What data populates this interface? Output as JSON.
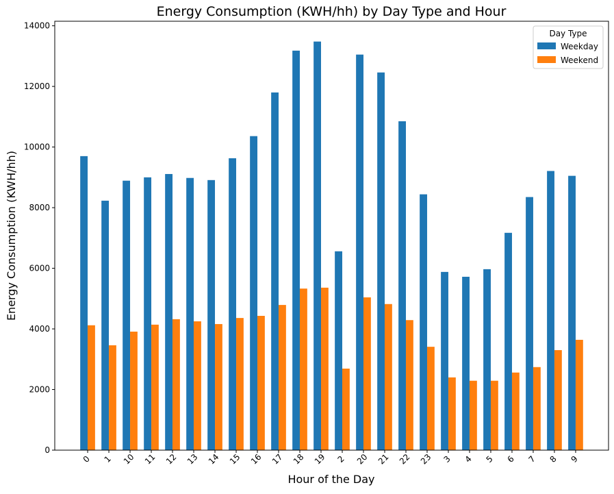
{
  "chart_data": {
    "type": "bar",
    "title": "Energy Consumption (KWH/hh) by Day Type and Hour",
    "x_label": "Hour of the Day",
    "y_label": "Energy Consumption (KWH/hh)",
    "legend_title": "Day Type",
    "legend_position": "upper right",
    "categories": [
      "0",
      "1",
      "10",
      "11",
      "12",
      "13",
      "14",
      "15",
      "16",
      "17",
      "18",
      "19",
      "2",
      "20",
      "21",
      "22",
      "23",
      "3",
      "4",
      "5",
      "6",
      "7",
      "8",
      "9"
    ],
    "series": [
      {
        "name": "Weekday",
        "color": "#1f77b4",
        "values": [
          9700,
          8230,
          8890,
          9000,
          9110,
          8980,
          8910,
          9630,
          10360,
          11800,
          13180,
          13480,
          6560,
          13050,
          12460,
          10850,
          8440,
          5880,
          5720,
          5970,
          7170,
          8350,
          9210,
          9050
        ]
      },
      {
        "name": "Weekend",
        "color": "#ff7f0e",
        "values": [
          4120,
          3460,
          3910,
          4140,
          4320,
          4250,
          4160,
          4360,
          4430,
          4790,
          5330,
          5360,
          2690,
          5040,
          4820,
          4290,
          3410,
          2400,
          2290,
          2290,
          2560,
          2740,
          3300,
          3640
        ]
      }
    ],
    "ylim": [
      0,
      14150
    ],
    "yticks": [
      0,
      2000,
      4000,
      6000,
      8000,
      10000,
      12000,
      14000
    ]
  }
}
